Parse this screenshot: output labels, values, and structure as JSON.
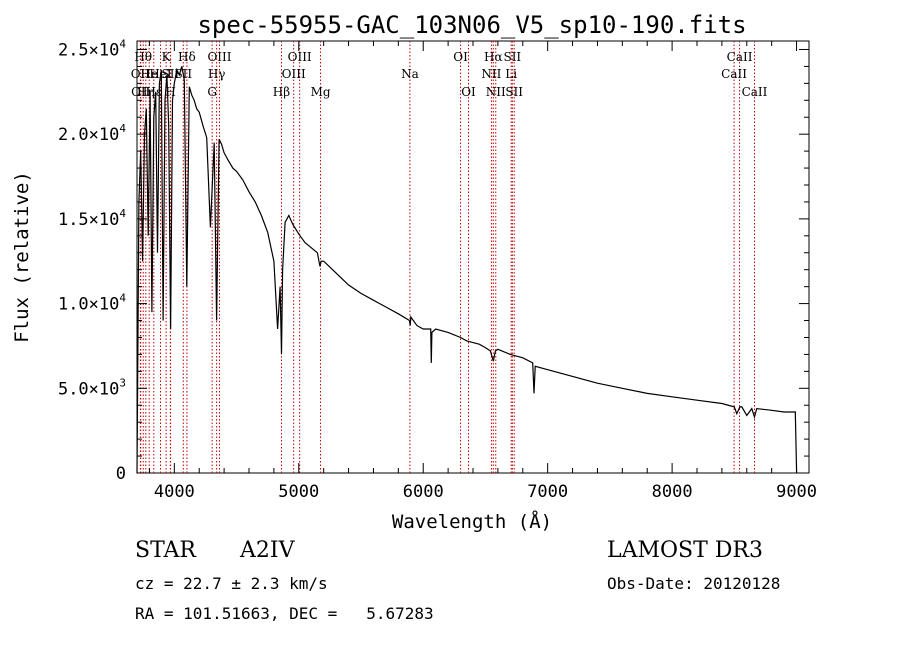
{
  "chart_data": {
    "type": "line",
    "title": "spec-55955-GAC_103N06_V5_sp10-190.fits",
    "xlabel": "Wavelength (Å)",
    "ylabel": "Flux (relative)",
    "xlim": [
      3700,
      9100
    ],
    "ylim": [
      0,
      25500
    ],
    "x_ticks": [
      {
        "value": 4000,
        "label": "4000"
      },
      {
        "value": 5000,
        "label": "5000"
      },
      {
        "value": 6000,
        "label": "6000"
      },
      {
        "value": 7000,
        "label": "7000"
      },
      {
        "value": 8000,
        "label": "8000"
      },
      {
        "value": 9000,
        "label": "9000"
      }
    ],
    "y_ticks": [
      {
        "value": 0,
        "mant": "0",
        "exp": ""
      },
      {
        "value": 5000,
        "mant": "5.0×10",
        "exp": "3"
      },
      {
        "value": 10000,
        "mant": "1.0×10",
        "exp": "4"
      },
      {
        "value": 15000,
        "mant": "1.5×10",
        "exp": "4"
      },
      {
        "value": 20000,
        "mant": "2.0×10",
        "exp": "4"
      },
      {
        "value": 25000,
        "mant": "2.5×10",
        "exp": "4"
      }
    ],
    "series": [
      {
        "name": "spectrum",
        "x": [
          3700,
          3715,
          3730,
          3745,
          3760,
          3775,
          3790,
          3805,
          3820,
          3835,
          3850,
          3865,
          3880,
          3895,
          3910,
          3925,
          3940,
          3955,
          3970,
          3985,
          4000,
          4020,
          4040,
          4060,
          4080,
          4100,
          4120,
          4140,
          4160,
          4180,
          4200,
          4230,
          4260,
          4290,
          4320,
          4340,
          4360,
          4380,
          4400,
          4430,
          4470,
          4500,
          4550,
          4600,
          4650,
          4700,
          4750,
          4800,
          4830,
          4850,
          4861,
          4870,
          4890,
          4920,
          4950,
          5000,
          5050,
          5100,
          5150,
          5170,
          5180,
          5200,
          5300,
          5400,
          5500,
          5600,
          5700,
          5800,
          5890,
          5895,
          5900,
          5950,
          6000,
          6060,
          6065,
          6070,
          6100,
          6200,
          6300,
          6350,
          6400,
          6450,
          6500,
          6540,
          6563,
          6580,
          6600,
          6700,
          6800,
          6880,
          6890,
          6900,
          7000,
          7200,
          7400,
          7600,
          7800,
          8000,
          8200,
          8400,
          8500,
          8520,
          8545,
          8560,
          8600,
          8640,
          8662,
          8680,
          8800,
          8900,
          8990,
          9000
        ],
        "values": [
          0,
          16000,
          19000,
          12500,
          20000,
          21500,
          14000,
          22500,
          9500,
          21000,
          22500,
          13000,
          23000,
          23800,
          9000,
          22000,
          23500,
          20500,
          8500,
          22000,
          23000,
          23800,
          23500,
          24000,
          23200,
          11000,
          22800,
          22300,
          22000,
          21500,
          21300,
          20500,
          19800,
          14500,
          19500,
          9000,
          19700,
          19400,
          18900,
          18500,
          18000,
          17800,
          17300,
          16600,
          16000,
          15200,
          14200,
          12500,
          8500,
          11000,
          7000,
          12000,
          14800,
          15200,
          14700,
          14100,
          13600,
          13300,
          13000,
          12200,
          12500,
          12500,
          11800,
          11100,
          10600,
          10200,
          9800,
          9400,
          9000,
          8700,
          9200,
          8700,
          8500,
          8500,
          6500,
          8300,
          8500,
          8300,
          8000,
          7800,
          7700,
          7600,
          7400,
          7200,
          6600,
          7200,
          7300,
          7000,
          6800,
          6500,
          4700,
          6300,
          6100,
          5700,
          5300,
          5000,
          4700,
          4500,
          4300,
          4100,
          3900,
          3500,
          3900,
          3900,
          3400,
          3800,
          3300,
          3800,
          3700,
          3600,
          3600,
          0
        ]
      }
    ],
    "lines": [
      {
        "wl": 3727,
        "label": "OII",
        "row": 2
      },
      {
        "wl": 3730,
        "label": "OII",
        "row": 3
      },
      {
        "wl": 3750,
        "label": "Hθ",
        "row": 1
      },
      {
        "wl": 3771,
        "label": "Hη",
        "row": 3
      },
      {
        "wl": 3798,
        "label": "He",
        "row": 2
      },
      {
        "wl": 3835,
        "label": "Hε",
        "row": 3
      },
      {
        "wl": 3889,
        "label": "HeI",
        "row": 2
      },
      {
        "wl": 3934,
        "label": "K",
        "row": 1
      },
      {
        "wl": 3968,
        "label": "SII",
        "row": 2
      },
      {
        "wl": 3970,
        "label": "H",
        "row": 3
      },
      {
        "wl": 4101,
        "label": "Hδ",
        "row": 1
      },
      {
        "wl": 4072,
        "label": "SII",
        "row": 2
      },
      {
        "wl": 4304,
        "label": "G",
        "row": 3
      },
      {
        "wl": 4340,
        "label": "Hγ",
        "row": 2
      },
      {
        "wl": 4363,
        "label": "OIII",
        "row": 1
      },
      {
        "wl": 4861,
        "label": "Hβ",
        "row": 3
      },
      {
        "wl": 4959,
        "label": "OIII",
        "row": 2
      },
      {
        "wl": 5007,
        "label": "OIII",
        "row": 1
      },
      {
        "wl": 5175,
        "label": "Mg",
        "row": 3
      },
      {
        "wl": 5893,
        "label": "Na",
        "row": 2
      },
      {
        "wl": 6300,
        "label": "OI",
        "row": 1
      },
      {
        "wl": 6364,
        "label": "OI",
        "row": 3
      },
      {
        "wl": 6548,
        "label": "NII",
        "row": 2
      },
      {
        "wl": 6563,
        "label": "Hα",
        "row": 1
      },
      {
        "wl": 6583,
        "label": "NII",
        "row": 3
      },
      {
        "wl": 6707,
        "label": "Li",
        "row": 2
      },
      {
        "wl": 6716,
        "label": "SII",
        "row": 1
      },
      {
        "wl": 6731,
        "label": "SII",
        "row": 3
      },
      {
        "wl": 8498,
        "label": "CaII",
        "row": 2
      },
      {
        "wl": 8542,
        "label": "CaII",
        "row": 1
      },
      {
        "wl": 8662,
        "label": "CaII",
        "row": 3
      }
    ]
  },
  "info": {
    "object_class": "STAR",
    "subclass": "A2IV",
    "survey": "LAMOST DR3",
    "cz": "cz = 22.7 ± 2.3 km/s",
    "obs_date": "Obs-Date: 20120128",
    "radec": "RA = 101.51663, DEC =   5.67283"
  }
}
